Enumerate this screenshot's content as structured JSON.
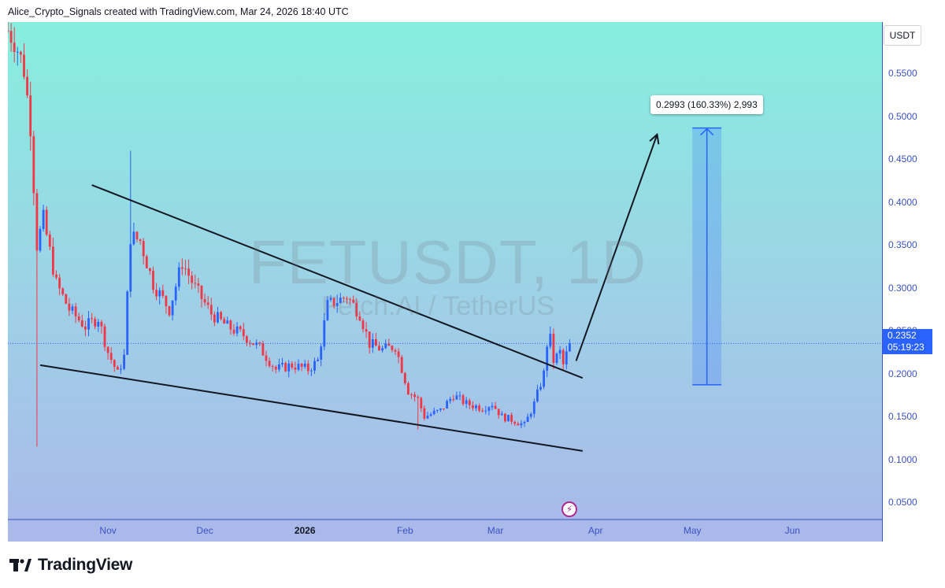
{
  "header": {
    "attribution": "Alice_Crypto_Signals created with TradingView.com, Mar 24, 2026 18:40 UTC"
  },
  "watermark": {
    "symbol": "FETUSDT, 1D",
    "name": "Fetch.AI / TetherUS"
  },
  "price_axis": {
    "currency": "USDT",
    "last_price": "0.2352",
    "countdown": "05:19:23"
  },
  "measure": {
    "label": "0.2993 (160.33%) 2,993"
  },
  "footer": {
    "brand": "TradingView"
  },
  "colors": {
    "up": "#2962ff",
    "down": "#f23645",
    "bg_top": "#86efdf",
    "bg_bottom": "#aab8ea",
    "accent": "#2962ff"
  },
  "chart_data": {
    "type": "candlestick",
    "symbol": "FETUSDT",
    "interval": "1D",
    "ylim": [
      0.03,
      0.61
    ],
    "yticks": [
      "0.5500",
      "0.5000",
      "0.4500",
      "0.4000",
      "0.3500",
      "0.3000",
      "0.2500",
      "0.2000",
      "0.1500",
      "0.1000",
      "0.0500"
    ],
    "xticks": [
      {
        "label": "Nov",
        "date": "2025-11-01"
      },
      {
        "label": "Dec",
        "date": "2025-12-01"
      },
      {
        "label": "2026",
        "date": "2026-01-01",
        "bold": true
      },
      {
        "label": "Feb",
        "date": "2026-02-01"
      },
      {
        "label": "Mar",
        "date": "2026-03-01"
      },
      {
        "label": "Apr",
        "date": "2026-04-01"
      },
      {
        "label": "May",
        "date": "2026-05-01"
      },
      {
        "label": "Jun",
        "date": "2026-06-01"
      }
    ],
    "anchors": [
      [
        "2025-10-01",
        0.6
      ],
      [
        "2025-10-03",
        0.59
      ],
      [
        "2025-10-06",
        0.555
      ],
      [
        "2025-10-08",
        0.49
      ],
      [
        "2025-10-10",
        0.35
      ],
      [
        "2025-10-12",
        0.38
      ],
      [
        "2025-10-16",
        0.305
      ],
      [
        "2025-10-20",
        0.275
      ],
      [
        "2025-10-25",
        0.255
      ],
      [
        "2025-10-29",
        0.265
      ],
      [
        "2025-11-01",
        0.225
      ],
      [
        "2025-11-04",
        0.2
      ],
      [
        "2025-11-06",
        0.22
      ],
      [
        "2025-11-08",
        0.36
      ],
      [
        "2025-11-11",
        0.355
      ],
      [
        "2025-11-15",
        0.305
      ],
      [
        "2025-11-20",
        0.275
      ],
      [
        "2025-11-24",
        0.33
      ],
      [
        "2025-11-28",
        0.3
      ],
      [
        "2025-12-03",
        0.27
      ],
      [
        "2025-12-08",
        0.255
      ],
      [
        "2025-12-13",
        0.245
      ],
      [
        "2025-12-18",
        0.23
      ],
      [
        "2025-12-23",
        0.205
      ],
      [
        "2025-12-28",
        0.21
      ],
      [
        "2026-01-02",
        0.205
      ],
      [
        "2026-01-05",
        0.215
      ],
      [
        "2026-01-08",
        0.28
      ],
      [
        "2026-01-14",
        0.29
      ],
      [
        "2026-01-18",
        0.27
      ],
      [
        "2026-01-21",
        0.235
      ],
      [
        "2026-01-25",
        0.228
      ],
      [
        "2026-01-29",
        0.232
      ],
      [
        "2026-02-02",
        0.18
      ],
      [
        "2026-02-05",
        0.17
      ],
      [
        "2026-02-07",
        0.15
      ],
      [
        "2026-02-12",
        0.157
      ],
      [
        "2026-02-16",
        0.175
      ],
      [
        "2026-02-20",
        0.165
      ],
      [
        "2026-02-25",
        0.16
      ],
      [
        "2026-02-28",
        0.165
      ],
      [
        "2026-03-03",
        0.15
      ],
      [
        "2026-03-07",
        0.145
      ],
      [
        "2026-03-10",
        0.14
      ],
      [
        "2026-03-13",
        0.165
      ],
      [
        "2026-03-16",
        0.2
      ],
      [
        "2026-03-17",
        0.235
      ],
      [
        "2026-03-18",
        0.24
      ],
      [
        "2026-03-19",
        0.215
      ],
      [
        "2026-03-21",
        0.225
      ],
      [
        "2026-03-22",
        0.21
      ],
      [
        "2026-03-24",
        0.2352
      ]
    ],
    "annotations": {
      "upper_trendline": [
        [
          "2025-10-27",
          0.42
        ],
        [
          "2026-03-28",
          0.195
        ]
      ],
      "lower_trendline": [
        [
          "2025-10-11",
          0.21
        ],
        [
          "2026-03-28",
          0.11
        ]
      ],
      "arrow": {
        "from": [
          "2026-03-26",
          0.215
        ],
        "to": [
          "2026-04-20",
          0.478
        ]
      },
      "measure_box": {
        "from": "2026-05-01",
        "to": "2026-05-10",
        "top": 0.4865,
        "bottom": 0.187
      }
    }
  }
}
